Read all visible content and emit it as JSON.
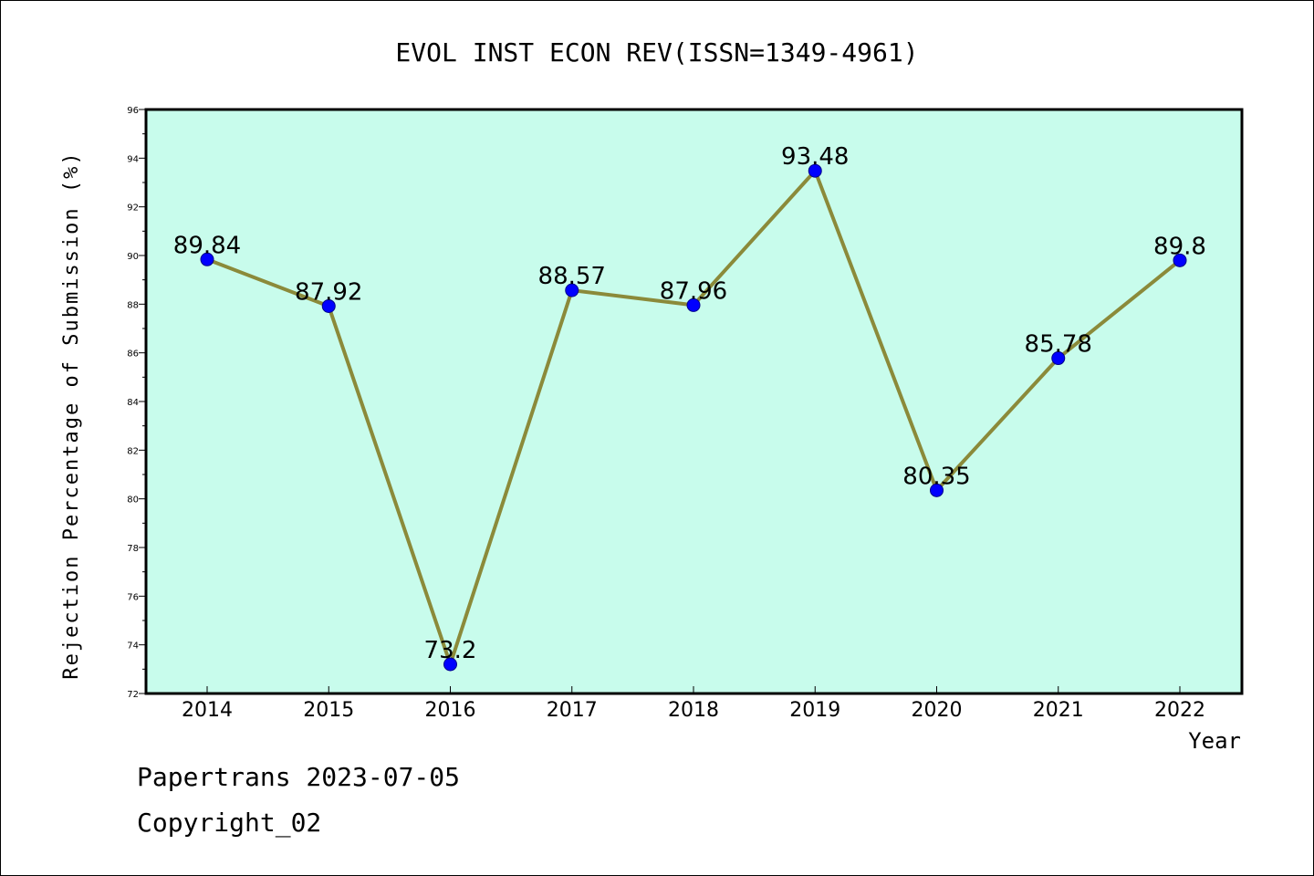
{
  "chart_data": {
    "type": "line",
    "title": "EVOL INST ECON REV(ISSN=1349-4961)",
    "xlabel": "Year",
    "ylabel": "Rejection Percentage of Submission (%)",
    "categories": [
      "2014",
      "2015",
      "2016",
      "2017",
      "2018",
      "2019",
      "2020",
      "2021",
      "2022"
    ],
    "series": [
      {
        "values": [
          89.84,
          87.92,
          73.2,
          88.57,
          87.96,
          93.48,
          80.35,
          85.78,
          89.8
        ],
        "labels": [
          "89.84",
          "87.92",
          "73.2",
          "88.57",
          "87.96",
          "93.48",
          "80.35",
          "85.78",
          "89.8"
        ]
      }
    ],
    "ylim": [
      72,
      96
    ],
    "yticks": [
      "72",
      "74",
      "76",
      "78",
      "80",
      "82",
      "84",
      "86",
      "88",
      "90",
      "92",
      "94",
      "96"
    ],
    "grid": false,
    "colors": {
      "plot_background": "#c8fcec",
      "line": "#8b8a3a",
      "marker": "#0000ff"
    }
  },
  "footer": {
    "line1": "Papertrans 2023-07-05",
    "line2": "Copyright_02"
  }
}
